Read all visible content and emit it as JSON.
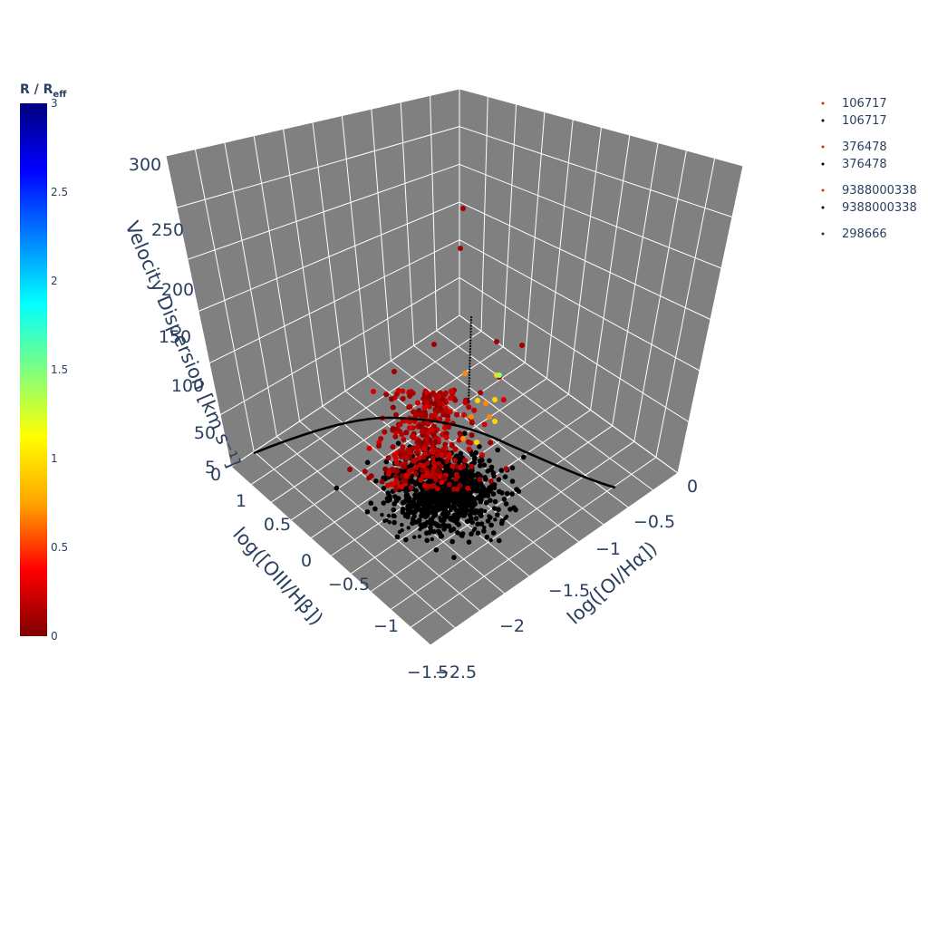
{
  "chart_data": {
    "type": "scatter3d",
    "axes": {
      "x": {
        "title": "log([OI/Hα])",
        "range": [
          -2.5,
          0
        ],
        "ticks": [
          "−2.5",
          "−2",
          "−1.5",
          "−1",
          "−0.5",
          "0"
        ]
      },
      "y": {
        "title": "log([OIII/Hβ])",
        "range": [
          -1.5,
          1.25
        ],
        "ticks": [
          "−1.5",
          "−1",
          "−0.5",
          "0",
          "0.5",
          "1"
        ]
      },
      "z": {
        "title": "Velocity Dispersion [km s⁻¹]",
        "range": [
          0,
          300
        ],
        "ticks": [
          "0",
          "5",
          "50",
          "100",
          "150",
          "200",
          "250",
          "300"
        ]
      }
    },
    "colorbar": {
      "title_main": "R / R",
      "title_sub": "eff",
      "range": [
        0,
        3
      ],
      "ticks": [
        "0",
        "0.5",
        "1",
        "1.5",
        "2",
        "2.5",
        "3"
      ],
      "colorscale": [
        "#7f0000",
        "#ff0000",
        "#ffa500",
        "#ffff00",
        "#7fff7f",
        "#00ffff",
        "#0080ff",
        "#0000ff",
        "#00007f"
      ]
    },
    "legend": [
      {
        "name": "106717",
        "color": "#d62a00",
        "group": 0
      },
      {
        "name": "106717",
        "color": "#000000",
        "group": 0
      },
      {
        "name": "376478",
        "color": "#d62a00",
        "group": 1
      },
      {
        "name": "376478",
        "color": "#000000",
        "group": 1
      },
      {
        "name": "9388000338",
        "color": "#e03010",
        "group": 2
      },
      {
        "name": "9388000338",
        "color": "#000000",
        "group": 2
      },
      {
        "name": "298666",
        "color": "#333333",
        "group": 3
      }
    ],
    "demarcation_curve": "Kewley 2001 [OI] maximum starburst line",
    "scene_background": "#808080",
    "grid_color": "#ffffff"
  }
}
